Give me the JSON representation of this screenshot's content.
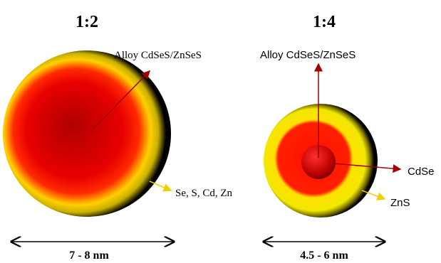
{
  "panels": [
    {
      "title": "1:2",
      "labels": [
        "Alloy CdSeS/ZnSeS",
        "Se, S, Cd, Zn"
      ],
      "size": "7 - 8 nm"
    },
    {
      "title": "1:4",
      "labels": [
        "Alloy CdSeS/ZnSeS",
        "CdSe",
        "ZnS"
      ],
      "size": "4.5 - 6 nm"
    }
  ]
}
